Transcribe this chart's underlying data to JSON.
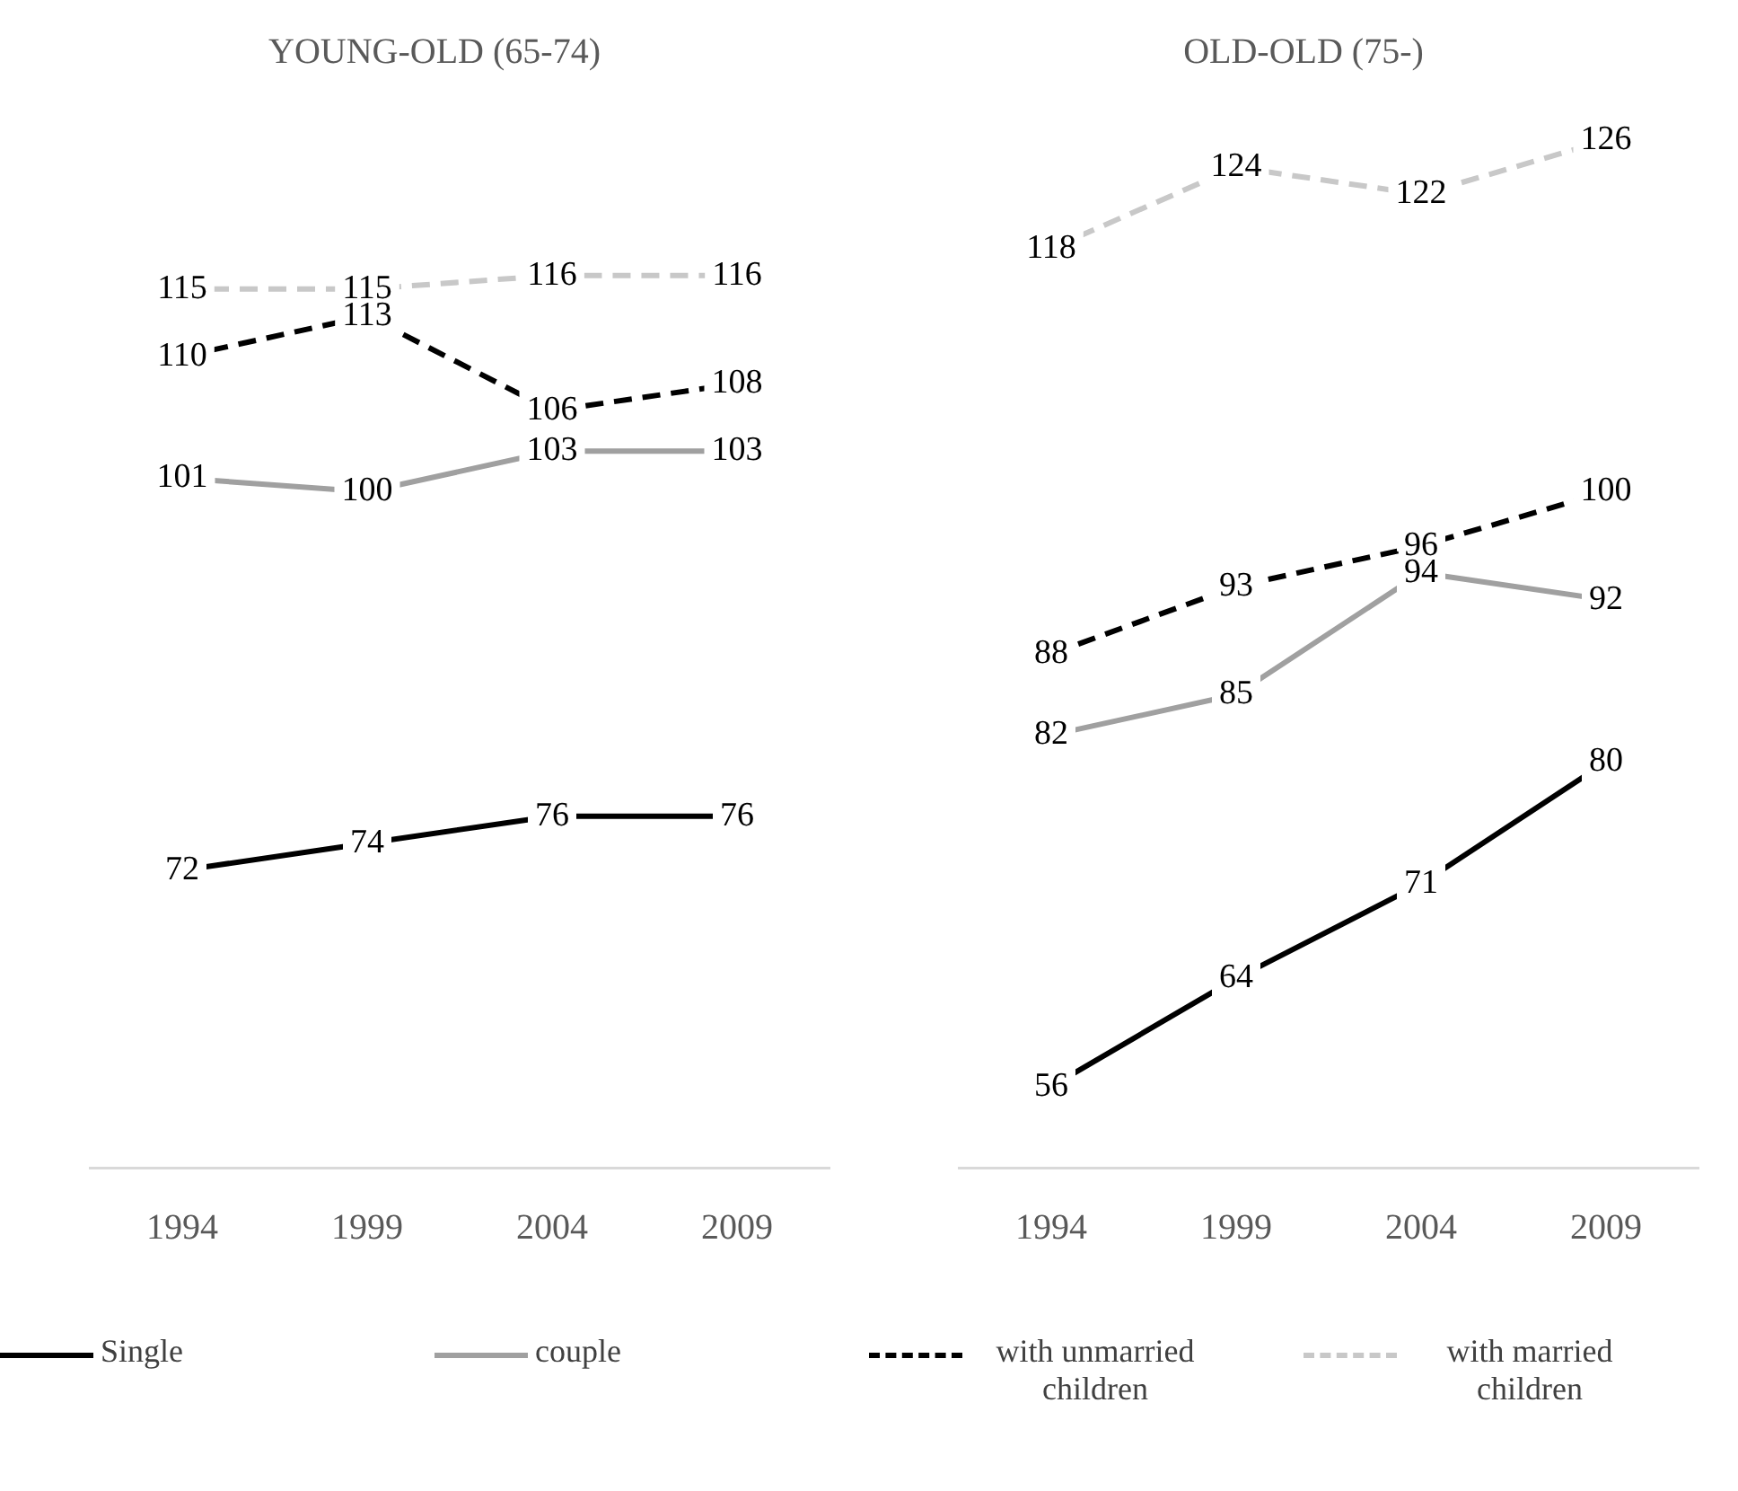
{
  "chart_data": [
    {
      "type": "line",
      "title": "YOUNG-OLD (65-74)",
      "categories": [
        "1994",
        "1999",
        "2004",
        "2009"
      ],
      "tick_labels": "x",
      "data_labels": true,
      "legend": "bottom",
      "grid": false,
      "marker": "none",
      "series": [
        {
          "name": "Single",
          "color": "#000000",
          "line_style": "solid",
          "values": [
            72,
            74,
            76,
            76
          ]
        },
        {
          "name": "couple",
          "color": "#a0a0a0",
          "line_style": "solid",
          "values": [
            101,
            100,
            103,
            103
          ]
        },
        {
          "name": "with unmarried children",
          "color": "#000000",
          "line_style": "dashed",
          "values": [
            110,
            113,
            106,
            108
          ]
        },
        {
          "name": "with married children",
          "color": "#c8c8c8",
          "line_style": "dashed",
          "values": [
            115,
            115,
            116,
            116
          ]
        }
      ]
    },
    {
      "type": "line",
      "title": "OLD-OLD (75-)",
      "categories": [
        "1994",
        "1999",
        "2004",
        "2009"
      ],
      "tick_labels": "x",
      "data_labels": true,
      "grid": false,
      "marker": "none",
      "series": [
        {
          "color": "#000000",
          "line_style": "solid",
          "values": [
            56,
            64,
            71,
            80
          ]
        },
        {
          "color": "#a0a0a0",
          "line_style": "solid",
          "values": [
            82,
            85,
            94,
            92
          ]
        },
        {
          "color": "#000000",
          "line_style": "dashed",
          "values": [
            88,
            93,
            96,
            100
          ]
        },
        {
          "color": "#c8c8c8",
          "line_style": "dashed",
          "values": [
            118,
            124,
            122,
            126
          ]
        }
      ]
    }
  ]
}
